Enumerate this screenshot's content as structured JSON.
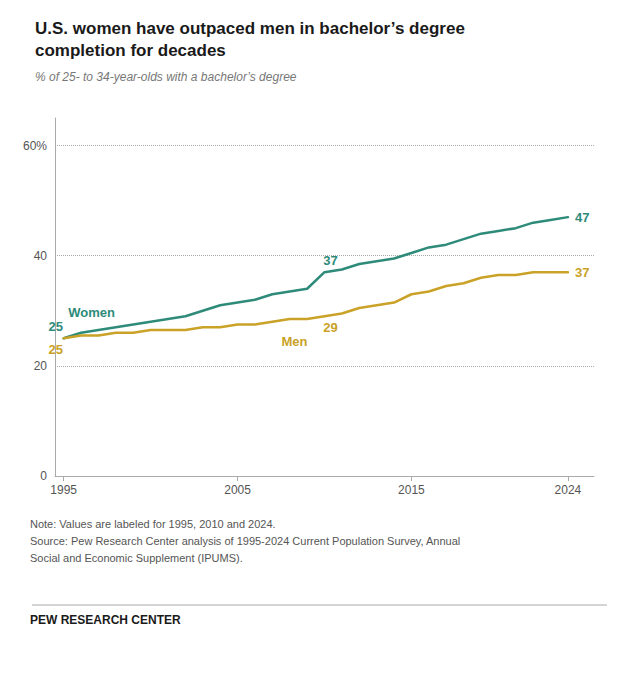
{
  "chart_data": {
    "type": "line",
    "title": "U.S. women have outpaced men in bachelor’s degree\ncompletion for decades",
    "subtitle": "% of 25- to 34-year-olds with a bachelor’s degree",
    "x": [
      1995,
      1996,
      1997,
      1998,
      1999,
      2000,
      2001,
      2002,
      2003,
      2004,
      2005,
      2006,
      2007,
      2008,
      2009,
      2010,
      2011,
      2012,
      2013,
      2014,
      2015,
      2016,
      2017,
      2018,
      2019,
      2020,
      2021,
      2022,
      2023,
      2024
    ],
    "series": [
      {
        "name": "Women",
        "color": "#2E8B7A",
        "values": [
          25,
          26,
          26.5,
          27,
          27.5,
          28,
          28.5,
          29,
          30,
          31,
          31.5,
          32,
          33,
          33.5,
          34,
          37,
          37.5,
          38.5,
          39,
          39.5,
          40.5,
          41.5,
          42,
          43,
          44,
          44.5,
          45,
          46,
          46.5,
          47
        ]
      },
      {
        "name": "Men",
        "color": "#C9A227",
        "values": [
          25,
          25.5,
          25.5,
          26,
          26,
          26.5,
          26.5,
          26.5,
          27,
          27,
          27.5,
          27.5,
          28,
          28.5,
          28.5,
          29,
          29.5,
          30.5,
          31,
          31.5,
          33,
          33.5,
          34.5,
          35,
          36,
          36.5,
          36.5,
          37,
          37,
          37
        ]
      }
    ],
    "xlim": [
      1994.5,
      2025.5
    ],
    "xticks": [
      1995,
      2005,
      2015,
      2024
    ],
    "ylim": [
      0,
      65
    ],
    "yticks": [
      0,
      20,
      40,
      {
        "value": 60,
        "label": "60%"
      }
    ],
    "grid": true,
    "annotations": [
      {
        "text": "Women",
        "x": 1995,
        "y": 25,
        "series": "Women"
      },
      {
        "text": "25",
        "x": 1995,
        "y": 25,
        "series": "Women"
      },
      {
        "text": "25",
        "x": 1995,
        "y": 25,
        "series": "Men"
      },
      {
        "text": "37",
        "x": 2010,
        "y": 37,
        "series": "Women"
      },
      {
        "text": "Men",
        "x": 2010,
        "y": 29,
        "series": "Men"
      },
      {
        "text": "29",
        "x": 2010,
        "y": 29,
        "series": "Men"
      },
      {
        "text": "47",
        "x": 2024,
        "y": 47,
        "series": "Women"
      },
      {
        "text": "37",
        "x": 2024,
        "y": 37,
        "series": "Men"
      }
    ],
    "note": "Note: Values are labeled for 1995, 2010 and 2024.\nSource: Pew Research Center analysis of 1995-2024 Current Population Survey, Annual\nSocial and Economic Supplement (IPUMS).",
    "footer": "PEW RESEARCH CENTER"
  }
}
